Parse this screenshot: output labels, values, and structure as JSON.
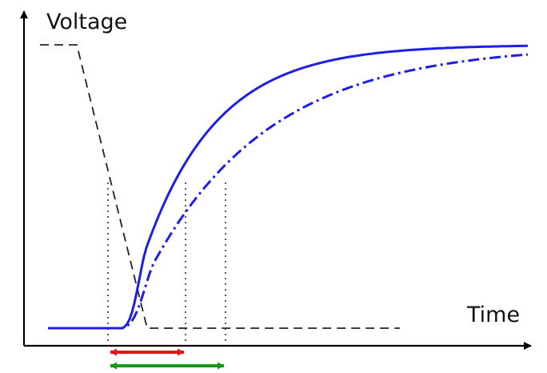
{
  "axes": {
    "y_label": "Voltage",
    "x_label": "Time"
  },
  "colors": {
    "curve": "#1e1ee6",
    "input": "#222222",
    "guide": "#333333",
    "arrow_short": "#e01818",
    "arrow_long": "#1a9a1a",
    "axis": "#000000"
  },
  "curves": [
    {
      "name": "",
      "style": "solid"
    },
    {
      "name": "",
      "style": "dash-dot"
    },
    {
      "name": "",
      "style": "dashed"
    }
  ]
}
